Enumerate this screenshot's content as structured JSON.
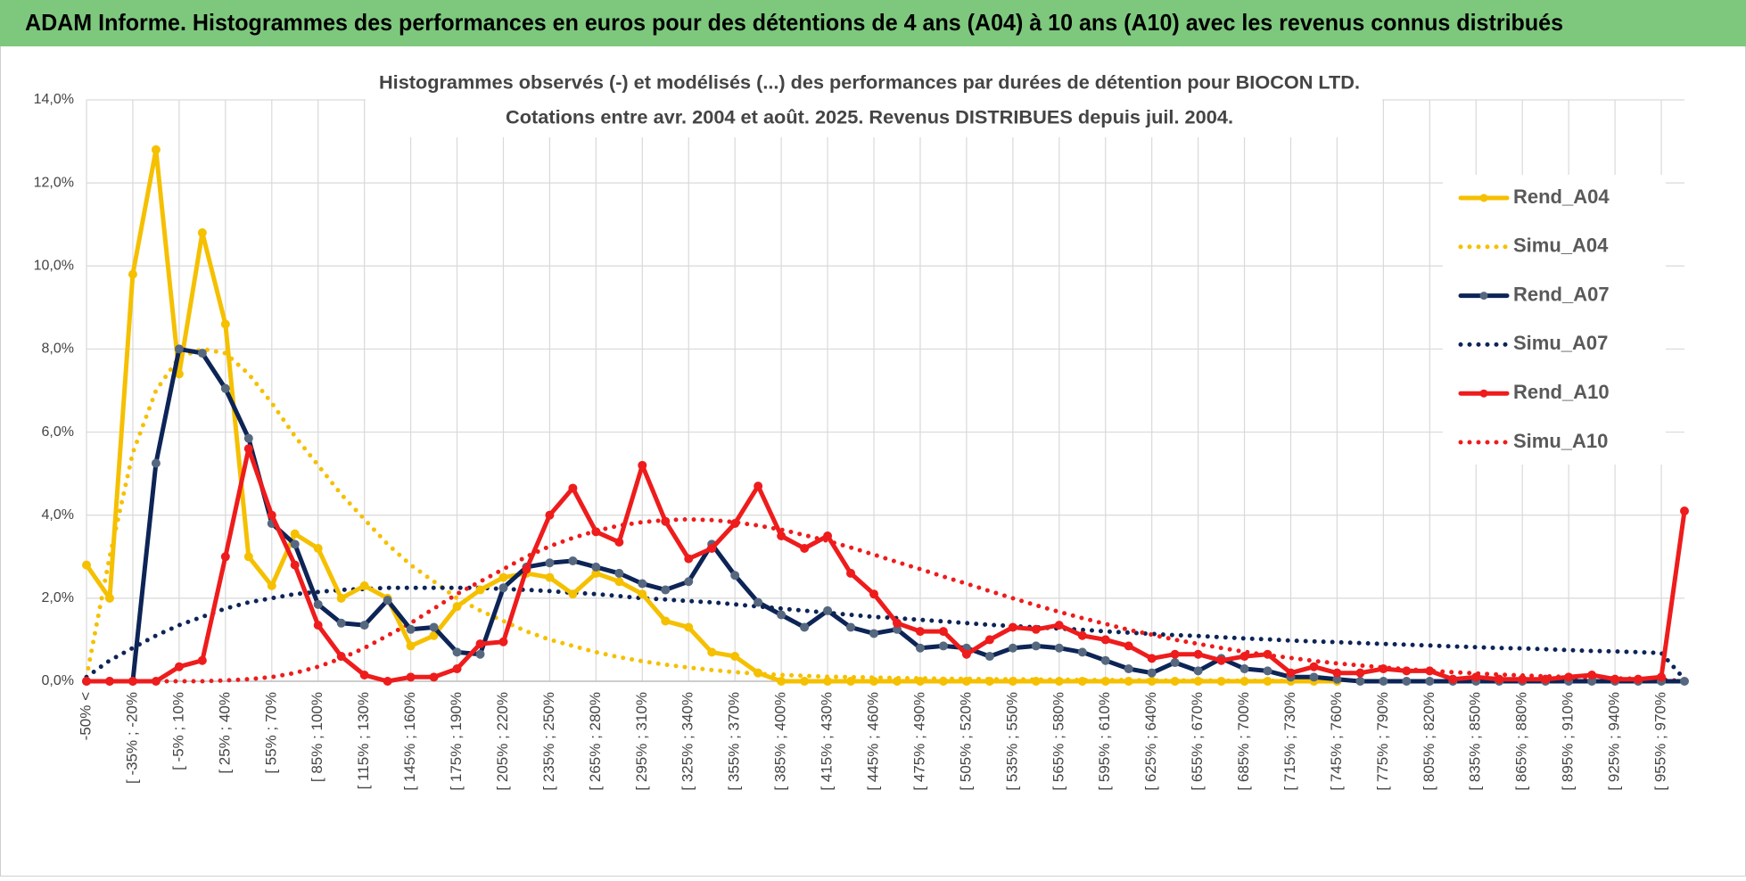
{
  "header": {
    "title": "ADAM Informe. Histogrammes des performances en euros pour des détentions de 4 ans (A04) à 10 ans (A10) avec les revenus connus distribués"
  },
  "chart_data": {
    "type": "line",
    "title": [
      "Histogrammes observés (-) et modélisés (...) des performances par durées de détention pour BIOCON LTD.",
      "Cotations entre avr. 2004 et août. 2025. Revenus DISTRIBUES depuis juil. 2004."
    ],
    "categories": [
      "-50% <",
      null,
      "[ -35% ; -20%",
      null,
      "[ -5% ; 10%",
      null,
      "[ 25% ; 40%",
      null,
      "[ 55% ; 70%",
      null,
      "[ 85% ; 100%",
      null,
      "[ 115% ; 130%",
      null,
      "[ 145% ; 160%",
      null,
      "[ 175% ; 190%",
      null,
      "[ 205% ; 220%",
      null,
      "[ 235% ; 250%",
      null,
      "[ 265% ; 280%",
      null,
      "[ 295% ; 310%",
      null,
      "[ 325% ; 340%",
      null,
      "[ 355% ; 370%",
      null,
      "[ 385% ; 400%",
      null,
      "[ 415% ; 430%",
      null,
      "[ 445% ; 460%",
      null,
      "[ 475% ; 490%",
      null,
      "[ 505% ; 520%",
      null,
      "[ 535% ; 550%",
      null,
      "[ 565% ; 580%",
      null,
      "[ 595% ; 610%",
      null,
      "[ 625% ; 640%",
      null,
      "[ 655% ; 670%",
      null,
      "[ 685% ; 700%",
      null,
      "[ 715% ; 730%",
      null,
      "[ 745% ; 760%",
      null,
      "[ 775% ; 790%",
      null,
      "[ 805% ; 820%",
      null,
      "[ 835% ; 850%",
      null,
      "[ 865% ; 880%",
      null,
      "[ 895% ; 910%",
      null,
      "[ 925% ; 940%",
      null,
      "[ 955% ; 970%",
      null
    ],
    "ylim": [
      0,
      14
    ],
    "yticks": [
      {
        "value": 0,
        "label": "0,0%"
      },
      {
        "value": 2,
        "label": "2,0%"
      },
      {
        "value": 4,
        "label": "4,0%"
      },
      {
        "value": 6,
        "label": "6,0%"
      },
      {
        "value": 8,
        "label": "8,0%"
      },
      {
        "value": 10,
        "label": "10,0%"
      },
      {
        "value": 12,
        "label": "12,0%"
      },
      {
        "value": 14,
        "label": "14,0%"
      }
    ],
    "grid": true,
    "legend": "right",
    "series": [
      {
        "name": "Rend_A04",
        "color": "#f5c000",
        "style": "solid",
        "marker": true,
        "marker_color": "#f5c000",
        "values": [
          2.8,
          2.0,
          9.8,
          12.8,
          7.4,
          10.8,
          8.6,
          3.0,
          2.3,
          3.55,
          3.2,
          2.0,
          2.3,
          2.0,
          0.85,
          1.1,
          1.8,
          2.2,
          2.5,
          2.6,
          2.5,
          2.1,
          2.6,
          2.4,
          2.1,
          1.45,
          1.3,
          0.7,
          0.6,
          0.2,
          0,
          0,
          0,
          0,
          0,
          0,
          0,
          0,
          0,
          0,
          0,
          0,
          0,
          0,
          0,
          0,
          0,
          0,
          0,
          0,
          0,
          0,
          0,
          0,
          0,
          null,
          null,
          null,
          null,
          null,
          null,
          null,
          null,
          null,
          null,
          null,
          null,
          null,
          null,
          null
        ]
      },
      {
        "name": "Simu_A04",
        "color": "#f5c000",
        "style": "dotted",
        "marker": false,
        "values": [
          0.1,
          3.0,
          5.5,
          7.0,
          7.8,
          8.0,
          7.9,
          7.4,
          6.7,
          5.9,
          5.2,
          4.5,
          3.9,
          3.3,
          2.8,
          2.4,
          2.0,
          1.7,
          1.45,
          1.2,
          1.0,
          0.85,
          0.7,
          0.58,
          0.48,
          0.4,
          0.33,
          0.27,
          0.22,
          0.18,
          0.15,
          0.13,
          0.11,
          0.1,
          0.09,
          0.08,
          0.07,
          0.06,
          0.06,
          0.05,
          0.05,
          0.04,
          0.04,
          0.03,
          0.03,
          0.03,
          0.02,
          0.02,
          0.02,
          0.02,
          0.01,
          0.01,
          0.01,
          0.01,
          0.01,
          null,
          null,
          null,
          null,
          null,
          null,
          null,
          null,
          null,
          null,
          null,
          null,
          null,
          null,
          null
        ]
      },
      {
        "name": "Rend_A07",
        "color": "#0d2456",
        "style": "solid",
        "marker": true,
        "marker_color": "#56687f",
        "values": [
          0,
          0,
          0,
          5.25,
          8.0,
          7.9,
          7.05,
          5.85,
          3.8,
          3.3,
          1.85,
          1.4,
          1.35,
          1.95,
          1.25,
          1.3,
          0.7,
          0.65,
          2.25,
          2.75,
          2.85,
          2.9,
          2.75,
          2.6,
          2.35,
          2.2,
          2.4,
          3.3,
          2.55,
          1.9,
          1.6,
          1.3,
          1.7,
          1.3,
          1.15,
          1.25,
          0.8,
          0.85,
          0.8,
          0.6,
          0.8,
          0.85,
          0.8,
          0.7,
          0.5,
          0.3,
          0.2,
          0.45,
          0.25,
          0.55,
          0.3,
          0.25,
          0.1,
          0.1,
          0.05,
          0,
          0,
          0,
          0,
          0,
          0,
          0,
          0,
          0,
          0,
          0,
          0,
          0,
          0,
          0
        ]
      },
      {
        "name": "Simu_A07",
        "color": "#0d2456",
        "style": "dotted",
        "marker": false,
        "values": [
          0.1,
          0.5,
          0.8,
          1.1,
          1.35,
          1.55,
          1.75,
          1.9,
          2.0,
          2.1,
          2.15,
          2.2,
          2.22,
          2.25,
          2.25,
          2.25,
          2.25,
          2.25,
          2.22,
          2.2,
          2.17,
          2.13,
          2.1,
          2.05,
          2.0,
          1.97,
          1.93,
          1.9,
          1.85,
          1.8,
          1.75,
          1.7,
          1.65,
          1.6,
          1.55,
          1.52,
          1.48,
          1.44,
          1.4,
          1.36,
          1.33,
          1.3,
          1.27,
          1.24,
          1.2,
          1.17,
          1.14,
          1.11,
          1.09,
          1.06,
          1.03,
          1.01,
          0.98,
          0.96,
          0.94,
          0.92,
          0.9,
          0.88,
          0.86,
          0.84,
          0.82,
          0.8,
          0.79,
          0.77,
          0.75,
          0.73,
          0.72,
          0.7,
          0.68,
          0.05
        ]
      },
      {
        "name": "Rend_A10",
        "color": "#ee1c1c",
        "style": "solid",
        "marker": true,
        "marker_color": "#ee1c1c",
        "values": [
          0,
          0,
          0,
          0,
          0.35,
          0.5,
          3.0,
          5.6,
          4.0,
          2.8,
          1.35,
          0.6,
          0.15,
          0,
          0.1,
          0.1,
          0.3,
          0.9,
          0.95,
          2.7,
          4.0,
          4.65,
          3.6,
          3.35,
          5.2,
          3.85,
          2.95,
          3.2,
          3.8,
          4.7,
          3.5,
          3.2,
          3.5,
          2.6,
          2.1,
          1.4,
          1.2,
          1.2,
          0.65,
          1.0,
          1.3,
          1.25,
          1.35,
          1.1,
          1.0,
          0.85,
          0.55,
          0.65,
          0.65,
          0.5,
          0.6,
          0.65,
          0.2,
          0.35,
          0.2,
          0.2,
          0.3,
          0.25,
          0.25,
          0.05,
          0.1,
          0.05,
          0.05,
          0.05,
          0.1,
          0.15,
          0.05,
          0.05,
          0.1,
          4.1
        ]
      },
      {
        "name": "Simu_A10",
        "color": "#ee1c1c",
        "style": "dotted",
        "marker": false,
        "values": [
          0,
          0,
          0,
          0,
          0,
          0,
          0.02,
          0.05,
          0.1,
          0.2,
          0.35,
          0.55,
          0.8,
          1.1,
          1.4,
          1.75,
          2.1,
          2.4,
          2.7,
          3.0,
          3.25,
          3.45,
          3.62,
          3.75,
          3.83,
          3.88,
          3.9,
          3.88,
          3.83,
          3.75,
          3.65,
          3.52,
          3.38,
          3.22,
          3.05,
          2.87,
          2.7,
          2.52,
          2.35,
          2.17,
          2.0,
          1.83,
          1.67,
          1.52,
          1.38,
          1.24,
          1.12,
          1.0,
          0.9,
          0.8,
          0.71,
          0.63,
          0.56,
          0.49,
          0.43,
          0.38,
          0.33,
          0.29,
          0.25,
          0.22,
          0.19,
          0.16,
          0.14,
          0.12,
          0.1,
          0.09,
          0.07,
          0.06,
          0.05,
          0
        ]
      }
    ]
  }
}
